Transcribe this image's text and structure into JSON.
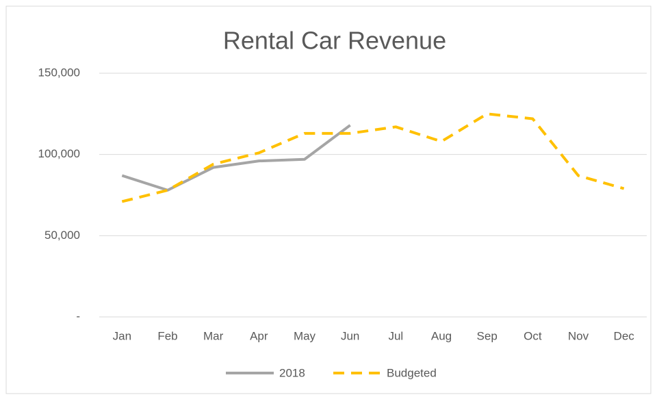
{
  "chart_data": {
    "type": "line",
    "title": "Rental Car Revenue",
    "categories": [
      "Jan",
      "Feb",
      "Mar",
      "Apr",
      "May",
      "Jun",
      "Jul",
      "Aug",
      "Sep",
      "Oct",
      "Nov",
      "Dec"
    ],
    "series": [
      {
        "name": "2018",
        "color": "#a5a5a5",
        "dashed": false,
        "values": [
          87000,
          78000,
          92000,
          96000,
          97000,
          118000,
          null,
          null,
          null,
          null,
          null,
          null
        ]
      },
      {
        "name": "Budgeted",
        "color": "#ffc000",
        "dashed": true,
        "values": [
          71000,
          78000,
          94000,
          101000,
          113000,
          113000,
          117000,
          108000,
          125000,
          122000,
          87000,
          79000
        ]
      }
    ],
    "ylim": [
      0,
      150000
    ],
    "yticks": [
      {
        "value": 0,
        "label": "-"
      },
      {
        "value": 50000,
        "label": "50,000"
      },
      {
        "value": 100000,
        "label": "100,000"
      },
      {
        "value": 150000,
        "label": "150,000"
      }
    ],
    "grid": true,
    "legend": "bottom"
  }
}
